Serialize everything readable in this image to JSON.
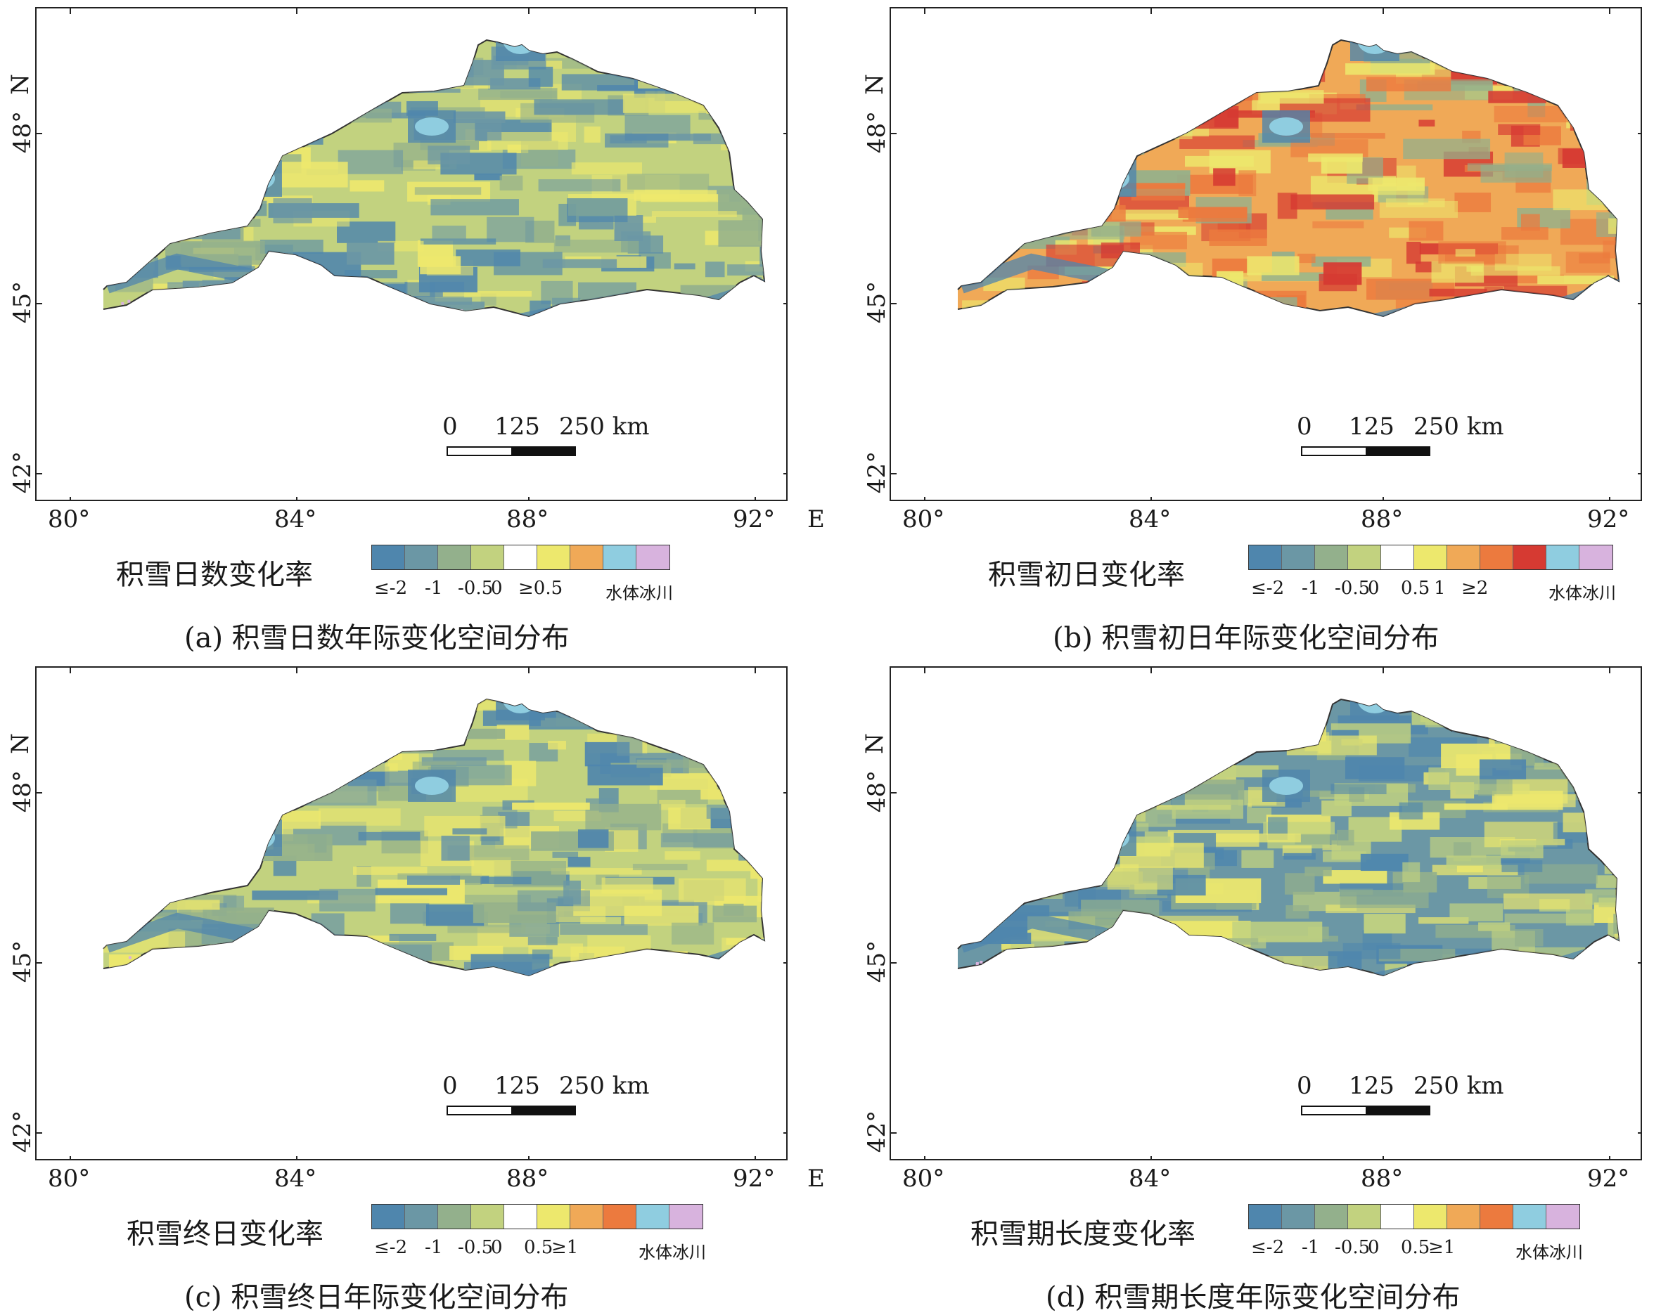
{
  "axes": {
    "lat_ticks": [
      "48°",
      "45°",
      "42°"
    ],
    "lon_ticks": [
      "80°",
      "84°",
      "88°",
      "92°"
    ],
    "north_letter": "N",
    "east_letter": "E"
  },
  "scalebar": {
    "labels": [
      "0",
      "125",
      "250 km"
    ]
  },
  "legend_classes": {
    "water": "水体",
    "glacier": "冰川"
  },
  "colors": {
    "c1": "#4f86ad",
    "c2": "#6b97a5",
    "c3": "#93b08c",
    "c4": "#c2d27f",
    "c5": "#ffffff",
    "c6": "#ede86d",
    "c7": "#f0a957",
    "c8": "#ec7a3e",
    "c9": "#d63a32",
    "water": "#8fcde0",
    "glacier": "#d8b3de"
  },
  "panels": [
    {
      "id": "a",
      "legend_title": "积雪日数变化率",
      "caption": "(a) 积雪日数年际变化空间分布",
      "swatches": [
        "c1",
        "c2",
        "c3",
        "c4",
        "c5",
        "c6",
        "c7",
        "water",
        "glacier"
      ],
      "tick_labels": [
        "≤-2",
        "-1",
        "-0.5",
        "0",
        "≥0.5"
      ],
      "dominant": "mixed-green-blue"
    },
    {
      "id": "b",
      "legend_title": "积雪初日变化率",
      "caption": "(b) 积雪初日年际变化空间分布",
      "swatches": [
        "c1",
        "c2",
        "c3",
        "c4",
        "c5",
        "c6",
        "c7",
        "c8",
        "c9",
        "water",
        "glacier"
      ],
      "tick_labels": [
        "≤-2",
        "-1",
        "-0.5",
        "0",
        "0.5",
        "1",
        "≥2"
      ],
      "dominant": "orange-yellow"
    },
    {
      "id": "c",
      "legend_title": "积雪终日变化率",
      "caption": "(c) 积雪终日年际变化空间分布",
      "swatches": [
        "c1",
        "c2",
        "c3",
        "c4",
        "c5",
        "c6",
        "c7",
        "c8",
        "water",
        "glacier"
      ],
      "tick_labels": [
        "≤-2",
        "-1",
        "-0.5",
        "0",
        "0.5",
        "≥1"
      ],
      "dominant": "yellow-green"
    },
    {
      "id": "d",
      "legend_title": "积雪期长度变化率",
      "caption": "(d) 积雪期长度年际变化空间分布",
      "swatches": [
        "c1",
        "c2",
        "c3",
        "c4",
        "c5",
        "c6",
        "c7",
        "c8",
        "water",
        "glacier"
      ],
      "tick_labels": [
        "≤-2",
        "-1",
        "-0.5",
        "0",
        "0.5",
        "≥1"
      ],
      "dominant": "blue-green"
    }
  ]
}
